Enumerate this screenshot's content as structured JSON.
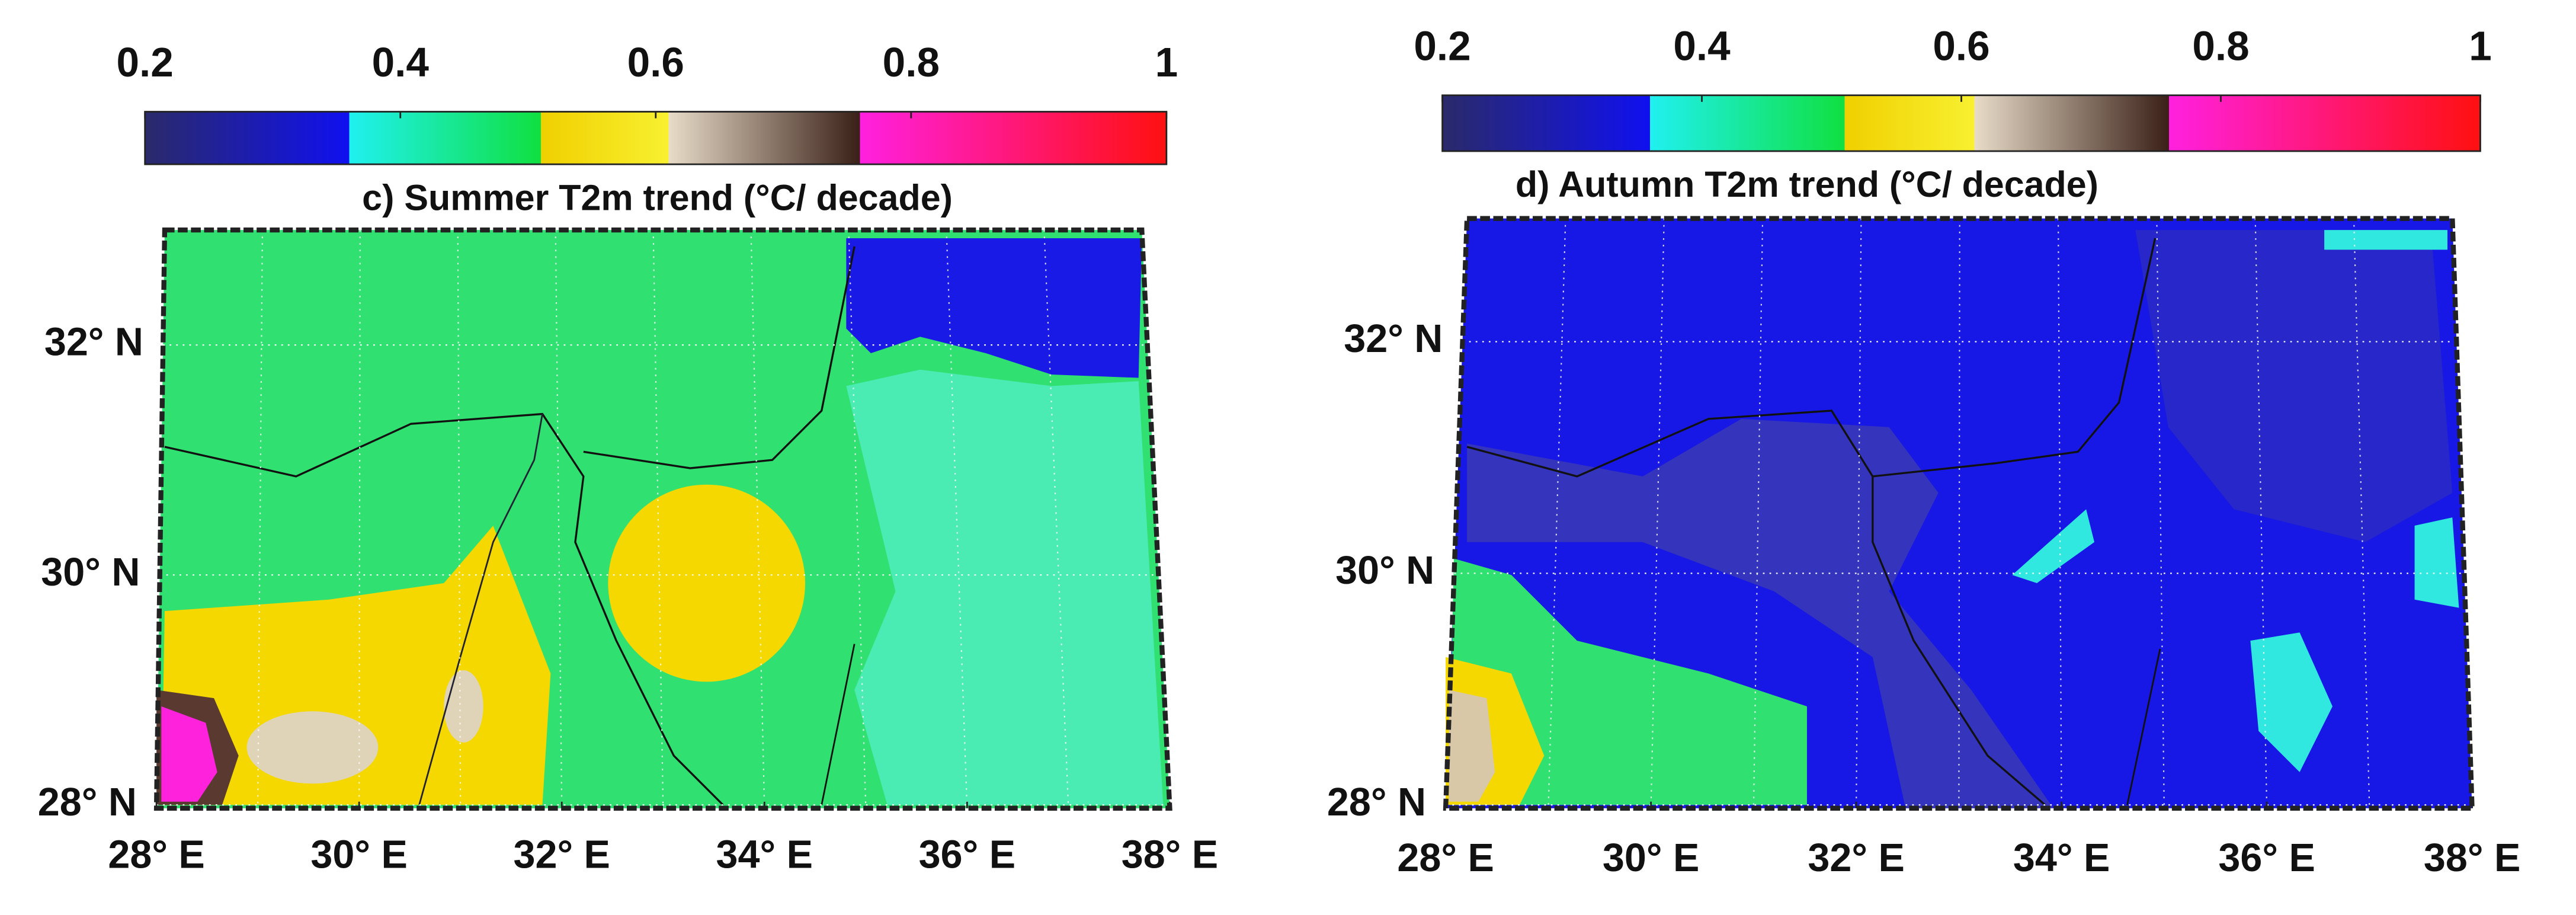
{
  "panels": [
    {
      "title": "c) Summer  T2m trend (°C/ decade)",
      "colorbar": {
        "lim": [
          0.2,
          1
        ],
        "ticks": [
          0.2,
          0.4,
          0.6,
          0.8,
          1
        ],
        "colormap": [
          {
            "value": 0.2,
            "color": "#2a2a6a"
          },
          {
            "value": 0.36,
            "color": "#1010f0"
          },
          {
            "value": 0.36,
            "color": "#20f0f0"
          },
          {
            "value": 0.51,
            "color": "#10e040"
          },
          {
            "value": 0.51,
            "color": "#f0d000"
          },
          {
            "value": 0.61,
            "color": "#f8f030"
          },
          {
            "value": 0.61,
            "color": "#e8dcc8"
          },
          {
            "value": 0.76,
            "color": "#3a2018"
          },
          {
            "value": 0.76,
            "color": "#ff20e0"
          },
          {
            "value": 1,
            "color": "#ff1010"
          }
        ]
      },
      "lat_ticks": [
        {
          "value": 28,
          "label": "28° N"
        },
        {
          "value": 30,
          "label": "30° N"
        },
        {
          "value": 32,
          "label": "32° N"
        }
      ],
      "lon_ticks": [
        {
          "value": 28,
          "label": "28° E"
        },
        {
          "value": 30,
          "label": "30° E"
        },
        {
          "value": 32,
          "label": "32° E"
        },
        {
          "value": 34,
          "label": "34° E"
        },
        {
          "value": 36,
          "label": "36° E"
        },
        {
          "value": 38,
          "label": "38° E"
        }
      ]
    },
    {
      "title": "d) Autumn  T2m trend (°C/ decade)",
      "colorbar": {
        "lim": [
          0.2,
          1
        ],
        "ticks": [
          0.2,
          0.4,
          0.6,
          0.8,
          1
        ],
        "colormap": [
          {
            "value": 0.2,
            "color": "#2a2a6a"
          },
          {
            "value": 0.36,
            "color": "#1010f0"
          },
          {
            "value": 0.36,
            "color": "#20f0f0"
          },
          {
            "value": 0.51,
            "color": "#10e040"
          },
          {
            "value": 0.51,
            "color": "#f0d000"
          },
          {
            "value": 0.61,
            "color": "#f8f030"
          },
          {
            "value": 0.61,
            "color": "#e8dcc8"
          },
          {
            "value": 0.76,
            "color": "#3a2018"
          },
          {
            "value": 0.76,
            "color": "#ff20e0"
          },
          {
            "value": 1,
            "color": "#ff1010"
          }
        ]
      },
      "lat_ticks": [
        {
          "value": 28,
          "label": "28° N"
        },
        {
          "value": 30,
          "label": "30° N"
        },
        {
          "value": 32,
          "label": "32° N"
        }
      ],
      "lon_ticks": [
        {
          "value": 28,
          "label": "28° E"
        },
        {
          "value": 30,
          "label": "30° E"
        },
        {
          "value": 32,
          "label": "32° E"
        },
        {
          "value": 34,
          "label": "34° E"
        },
        {
          "value": 36,
          "label": "36° E"
        },
        {
          "value": 38,
          "label": "38° E"
        }
      ]
    }
  ]
}
